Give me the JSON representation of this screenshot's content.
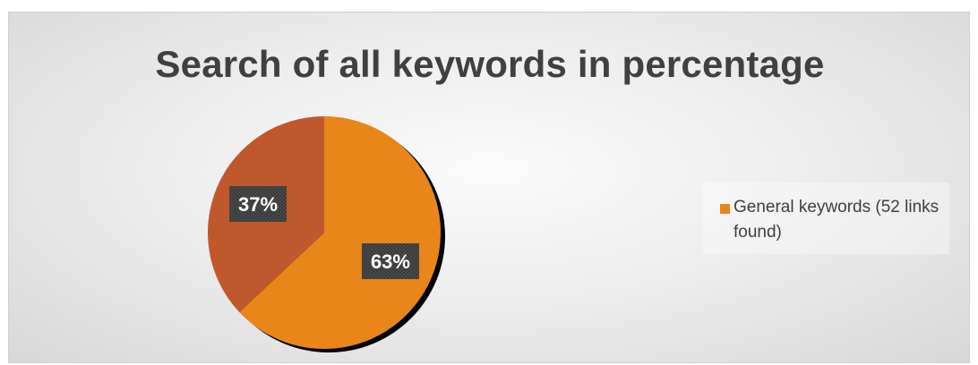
{
  "chart_data": {
    "type": "pie",
    "title": "Search of all keywords in percentage",
    "slices": [
      {
        "label": "General keywords (52 links found)",
        "value": 63,
        "display": "63%",
        "color": "#E8861A"
      },
      {
        "label": "",
        "value": 37,
        "display": "37%",
        "color": "#C0582E"
      }
    ],
    "legend": {
      "placement": "right",
      "entries": [
        "General keywords (52 links found)"
      ]
    }
  }
}
